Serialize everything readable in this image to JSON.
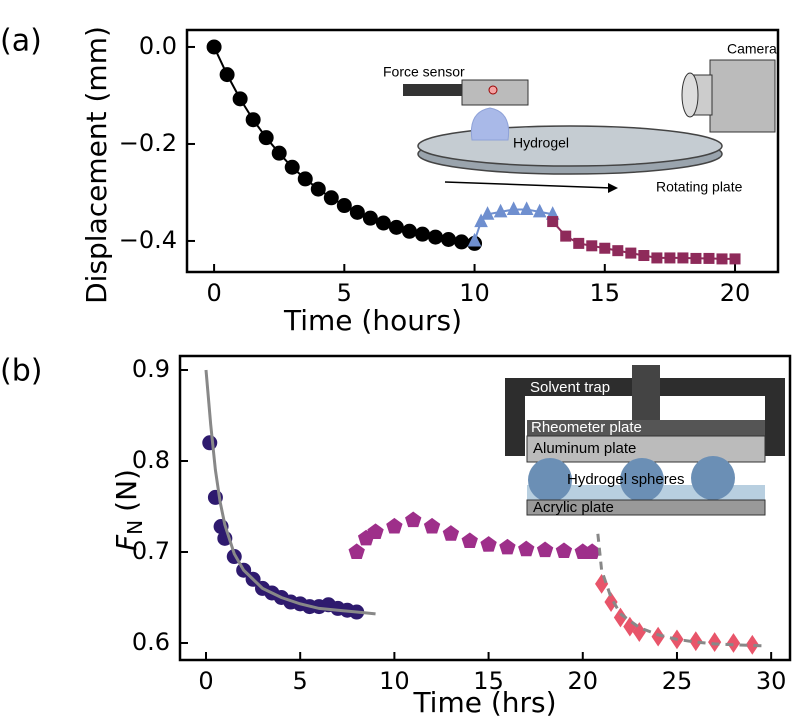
{
  "chart_data": [
    {
      "type": "scatter",
      "panel_label": "(a)",
      "x_label": "Time (hours)",
      "y_label": "Displacement (mm)",
      "xlim": [
        -1.04,
        21.65
      ],
      "ylim": [
        -0.464,
        0.035
      ],
      "xticks": [
        0,
        5,
        10,
        15,
        20
      ],
      "yticks": [
        {
          "value": 0,
          "label": "0.0"
        },
        {
          "value": -0.2,
          "label": "−0.2"
        },
        {
          "value": -0.4,
          "label": "−0.4"
        }
      ],
      "series": [
        {
          "color": "#000000",
          "marker": "circle",
          "style": "solid",
          "x": [
            0,
            0.5,
            1,
            1.5,
            2,
            2.5,
            3,
            3.5,
            4,
            4.5,
            5,
            5.5,
            6,
            6.5,
            7,
            7.5,
            8,
            8.5,
            9,
            9.5,
            10
          ],
          "values": [
            0,
            -0.057,
            -0.107,
            -0.15,
            -0.187,
            -0.219,
            -0.248,
            -0.272,
            -0.293,
            -0.311,
            -0.327,
            -0.341,
            -0.353,
            -0.363,
            -0.372,
            -0.38,
            -0.386,
            -0.392,
            -0.397,
            -0.402,
            -0.405
          ]
        },
        {
          "color": "#6f8fcf",
          "marker": "triangle",
          "style": "solid",
          "x": [
            10,
            10.25,
            10.5,
            11,
            11.5,
            12,
            12.5,
            13
          ],
          "values": [
            -0.4,
            -0.36,
            -0.345,
            -0.34,
            -0.335,
            -0.335,
            -0.34,
            -0.345
          ]
        },
        {
          "color": "#8e2a5a",
          "marker": "square",
          "style": "solid",
          "x": [
            13,
            13.5,
            14,
            14.5,
            15,
            15.5,
            16,
            16.5,
            17,
            17.5,
            18,
            18.5,
            19,
            19.5,
            20
          ],
          "values": [
            -0.36,
            -0.39,
            -0.405,
            -0.41,
            -0.415,
            -0.42,
            -0.425,
            -0.43,
            -0.435,
            -0.435,
            -0.435,
            -0.436,
            -0.436,
            -0.437,
            -0.437
          ]
        }
      ],
      "inset_labels": [
        "Force sensor",
        "Camera",
        "Hydrogel",
        "Rotating plate"
      ]
    },
    {
      "type": "scatter",
      "panel_label": "(b)",
      "x_label": "Time (hrs)",
      "y_label": {
        "symbol": "F",
        "subscript": "N",
        "unit": "(N)"
      },
      "xlim": [
        -1.38,
        31.0
      ],
      "ylim": [
        0.5813,
        0.9154
      ],
      "xticks": [
        0,
        5,
        10,
        15,
        20,
        25,
        30
      ],
      "yticks": [
        0.6,
        0.7,
        0.8,
        0.9
      ],
      "series": [
        {
          "color": "#2e1a6e",
          "marker": "circle",
          "x": [
            0.2,
            0.5,
            0.8,
            1,
            1.5,
            2,
            2.5,
            3,
            3.5,
            4,
            4.5,
            5,
            5.5,
            6,
            6.5,
            7,
            7.5,
            8
          ],
          "values": [
            0.82,
            0.76,
            0.728,
            0.715,
            0.695,
            0.68,
            0.67,
            0.66,
            0.655,
            0.65,
            0.645,
            0.643,
            0.64,
            0.64,
            0.642,
            0.638,
            0.636,
            0.634
          ]
        },
        {
          "color": "#9e2f8a",
          "marker": "pentagon",
          "x": [
            8,
            8.5,
            9,
            10,
            11,
            12,
            13,
            14,
            15,
            16,
            17,
            18,
            19,
            20,
            20.5
          ],
          "values": [
            0.7,
            0.715,
            0.722,
            0.728,
            0.735,
            0.728,
            0.72,
            0.712,
            0.708,
            0.705,
            0.703,
            0.702,
            0.701,
            0.7,
            0.7
          ]
        },
        {
          "color": "#e8556a",
          "marker": "diamond",
          "x": [
            21,
            21.5,
            22,
            22.5,
            23,
            24,
            25,
            26,
            27,
            28,
            29
          ],
          "values": [
            0.665,
            0.645,
            0.628,
            0.618,
            0.612,
            0.607,
            0.604,
            0.602,
            0.601,
            0.6,
            0.598
          ]
        },
        {
          "color": "#888888",
          "marker": "none",
          "style": "solid",
          "x": [
            0,
            0.25,
            0.5,
            0.75,
            1,
            1.5,
            2,
            3,
            4,
            5,
            6,
            7,
            8,
            9
          ],
          "values": [
            0.9,
            0.84,
            0.79,
            0.755,
            0.73,
            0.698,
            0.68,
            0.66,
            0.65,
            0.643,
            0.638,
            0.636,
            0.634,
            0.632
          ]
        },
        {
          "color": "#888888",
          "marker": "none",
          "style": "dashed",
          "x": [
            20.8,
            21,
            21.5,
            22,
            23,
            24,
            25,
            26,
            27,
            28,
            29.5
          ],
          "values": [
            0.72,
            0.68,
            0.65,
            0.632,
            0.617,
            0.609,
            0.604,
            0.601,
            0.599,
            0.598,
            0.597
          ]
        }
      ],
      "inset_labels": [
        "Solvent trap",
        "Rheometer plate",
        "Aluminum plate",
        "Hydrogel spheres",
        "Acrylic plate"
      ]
    }
  ]
}
